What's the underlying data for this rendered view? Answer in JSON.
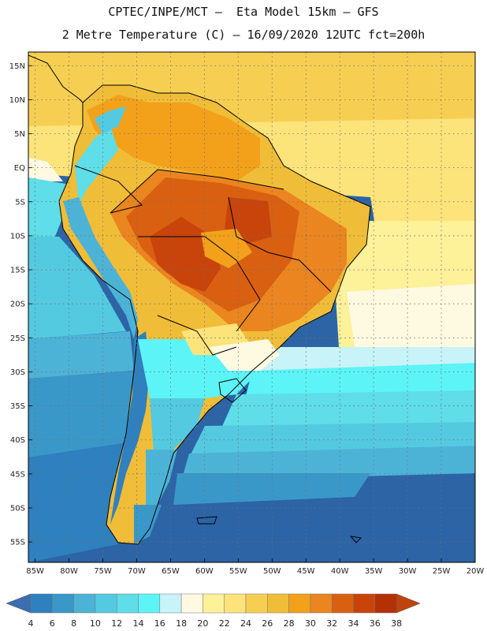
{
  "header": {
    "line1": "CPTEC/INPE/MCT –  Eta Model 15km – GFS",
    "line2": "2 Metre Temperature (C) – 16/09/2020 12UTC fct=200h"
  },
  "map": {
    "lat_labels": [
      "15N",
      "10N",
      "5N",
      "EQ",
      "5S",
      "10S",
      "15S",
      "20S",
      "25S",
      "30S",
      "35S",
      "40S",
      "45S",
      "50S",
      "55S"
    ],
    "lon_labels": [
      "85W",
      "80W",
      "75W",
      "70W",
      "65W",
      "60W",
      "55W",
      "50W",
      "45W",
      "40W",
      "35W",
      "30W",
      "25W",
      "20W"
    ],
    "lat_range": [
      -58,
      17
    ],
    "lon_range": [
      -86,
      -20
    ]
  },
  "legend": {
    "labels": [
      "4",
      "6",
      "8",
      "10",
      "12",
      "14",
      "16",
      "18",
      "20",
      "22",
      "24",
      "26",
      "28",
      "30",
      "32",
      "34",
      "36",
      "38"
    ],
    "colors": [
      "#3b6db0",
      "#2f80be",
      "#3a98c8",
      "#4db3d6",
      "#54cae1",
      "#5fdde8",
      "#5cf4f7",
      "#c8f3f8",
      "#fefae2",
      "#fdf19a",
      "#fce37a",
      "#f6cf52",
      "#f0bd38",
      "#f3a11b",
      "#ea8520",
      "#d96010",
      "#c8440b",
      "#b33105",
      "#c0430e"
    ]
  },
  "colors": {
    "land_outline": "#000000",
    "grid": "#6f6f6f"
  }
}
